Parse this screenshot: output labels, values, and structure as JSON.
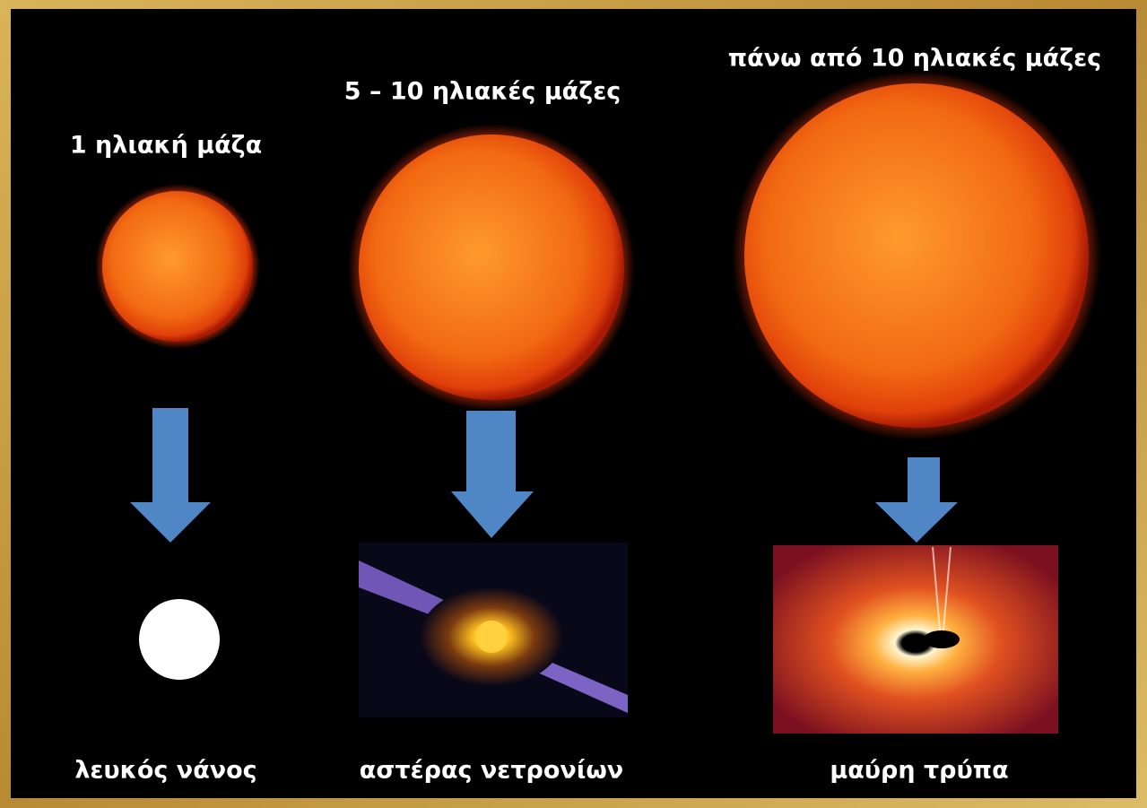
{
  "columns": [
    {
      "mass": "1 ηλιακή μάζα",
      "outcome": "λευκός νάνος"
    },
    {
      "mass": "5 – 10 ηλιακές μάζες",
      "outcome": "αστέρας νετρονίων"
    },
    {
      "mass": "πάνω από 10 ηλιακές μάζες",
      "outcome": "μαύρη τρύπα"
    }
  ]
}
